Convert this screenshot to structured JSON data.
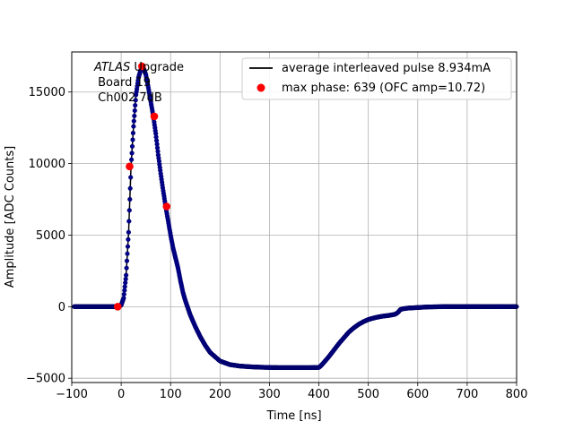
{
  "chart_data": {
    "type": "scatter",
    "xlabel": "Time [ns]",
    "ylabel": "Amplitude [ADC Counts]",
    "xlim": [
      -100,
      800
    ],
    "ylim": [
      -5300,
      17800
    ],
    "xticks": [
      -100,
      0,
      100,
      200,
      300,
      400,
      500,
      600,
      700,
      800
    ],
    "yticks": [
      -5000,
      0,
      5000,
      10000,
      15000
    ],
    "grid": true,
    "legend_position": "upper-right",
    "annotation": {
      "italic_part": "ATLAS",
      "rest_line1": " Upgrade",
      "line2": " Board 19",
      "line3": " Ch002 7dB"
    },
    "colors": {
      "line": "#000000",
      "samples": "#00008b",
      "max_phase": "#ff0000"
    },
    "series": [
      {
        "name": "average interleaved pulse 8.934mA",
        "style": "line-with-dense-markers",
        "x": [
          -95,
          -80,
          -60,
          -40,
          -20,
          -10,
          -5,
          0,
          5,
          10,
          15,
          20,
          25,
          30,
          35,
          40,
          45,
          50,
          55,
          60,
          65,
          70,
          75,
          80,
          85,
          90,
          95,
          100,
          105,
          110,
          115,
          120,
          125,
          130,
          135,
          140,
          150,
          160,
          170,
          180,
          190,
          200,
          220,
          240,
          260,
          280,
          300,
          320,
          340,
          360,
          380,
          400,
          405,
          410,
          420,
          430,
          440,
          450,
          460,
          470,
          480,
          490,
          500,
          510,
          520,
          530,
          540,
          550,
          555,
          560,
          565,
          570,
          580,
          600,
          620,
          650,
          700,
          750,
          800
        ],
        "y": [
          0,
          0,
          0,
          0,
          0,
          0,
          0,
          100,
          600,
          2200,
          5200,
          9800,
          12600,
          14800,
          16000,
          16600,
          16700,
          16200,
          15300,
          14300,
          13300,
          12100,
          10600,
          9300,
          8100,
          7000,
          6000,
          5000,
          4100,
          3400,
          2700,
          1800,
          1000,
          400,
          -100,
          -600,
          -1400,
          -2100,
          -2700,
          -3200,
          -3500,
          -3800,
          -4050,
          -4150,
          -4200,
          -4230,
          -4250,
          -4260,
          -4260,
          -4260,
          -4260,
          -4250,
          -4100,
          -3900,
          -3500,
          -3050,
          -2600,
          -2200,
          -1800,
          -1500,
          -1250,
          -1050,
          -900,
          -800,
          -720,
          -660,
          -620,
          -560,
          -520,
          -400,
          -200,
          -150,
          -100,
          -60,
          -20,
          0,
          0,
          0,
          0
        ]
      },
      {
        "name": "max phase: 639 (OFC amp=10.72)",
        "style": "markers",
        "x": [
          -7,
          17,
          42,
          67,
          92
        ],
        "y": [
          0,
          9800,
          16800,
          13300,
          7000
        ]
      }
    ]
  }
}
